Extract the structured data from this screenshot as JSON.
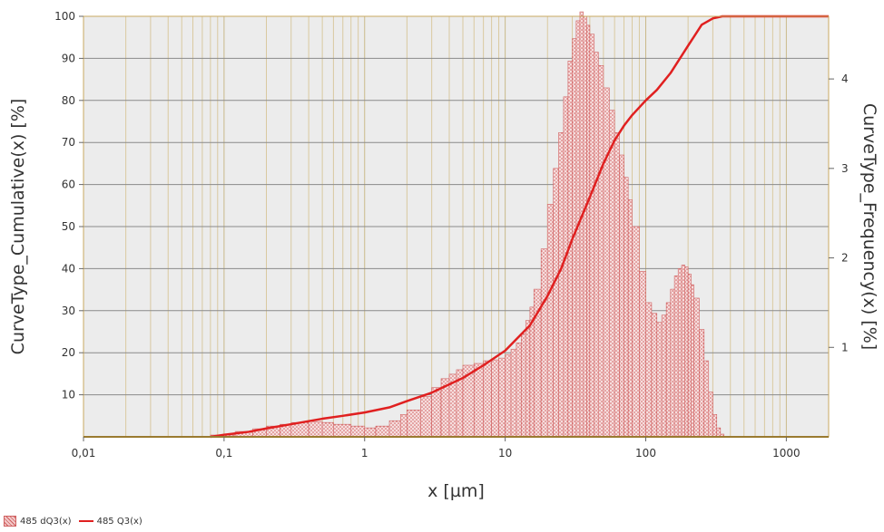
{
  "chart_data": {
    "type": "bar+line",
    "xlabel": "x [µm]",
    "ylabel_left": "CurveType_Cumulative(x) [%]",
    "ylabel_right": "CurveType_Frequency(x) [%]",
    "x_scale": "log",
    "xlim": [
      0.01,
      2000
    ],
    "ylim_left": [
      0,
      100
    ],
    "ylim_right": [
      0,
      4.7
    ],
    "x_ticks": [
      {
        "value": 0.01,
        "label": "0,01"
      },
      {
        "value": 0.1,
        "label": "0,1"
      },
      {
        "value": 1,
        "label": "1"
      },
      {
        "value": 10,
        "label": "10"
      },
      {
        "value": 100,
        "label": "100"
      },
      {
        "value": 1000,
        "label": "1000"
      }
    ],
    "y_left_ticks": [
      {
        "value": 10,
        "label": "10"
      },
      {
        "value": 20,
        "label": "20"
      },
      {
        "value": 30,
        "label": "30"
      },
      {
        "value": 40,
        "label": "40"
      },
      {
        "value": 50,
        "label": "50"
      },
      {
        "value": 60,
        "label": "60"
      },
      {
        "value": 70,
        "label": "70"
      },
      {
        "value": 80,
        "label": "80"
      },
      {
        "value": 90,
        "label": "90"
      },
      {
        "value": 100,
        "label": "100"
      }
    ],
    "y_right_ticks": [
      {
        "value": 1,
        "label": "1"
      },
      {
        "value": 2,
        "label": "2"
      },
      {
        "value": 3,
        "label": "3"
      },
      {
        "value": 4,
        "label": "4"
      }
    ],
    "grid": true,
    "legend_position": "bottom-left",
    "colors": {
      "background": "#ececec",
      "grid_major": "#8a8a8a",
      "grid_minor": "#d9c9a0",
      "frame": "#c8a860",
      "bar_fill": "#f2c9c9",
      "bar_stroke": "#d06060",
      "line": "#e02020"
    },
    "series": [
      {
        "name": "485 dQ3(x)",
        "axis": "right",
        "kind": "histogram",
        "x": [
          0.08,
          0.12,
          0.16,
          0.2,
          0.25,
          0.3,
          0.4,
          0.5,
          0.6,
          0.8,
          1.0,
          1.2,
          1.5,
          1.8,
          2.0,
          2.5,
          3.0,
          3.5,
          4.0,
          4.5,
          5.0,
          6.0,
          7.0,
          8.0,
          9.0,
          10.0,
          11.0,
          12.0,
          13.0,
          14.0,
          15.0,
          16.0,
          18.0,
          20.0,
          22.0,
          24.0,
          26.0,
          28.0,
          30.0,
          32.0,
          34.0,
          36.0,
          38.0,
          40.0,
          43.0,
          46.0,
          50.0,
          55.0,
          60.0,
          65.0,
          70.0,
          75.0,
          80.0,
          90.0,
          100.0,
          110.0,
          120.0,
          130.0,
          140.0,
          150.0,
          160.0,
          170.0,
          180.0,
          190.0,
          200.0,
          210.0,
          220.0,
          240.0,
          260.0,
          280.0,
          300.0,
          320.0,
          340.0,
          360.0
        ],
        "values": [
          0.02,
          0.06,
          0.09,
          0.12,
          0.14,
          0.16,
          0.17,
          0.16,
          0.14,
          0.12,
          0.1,
          0.12,
          0.18,
          0.25,
          0.3,
          0.45,
          0.55,
          0.65,
          0.7,
          0.75,
          0.8,
          0.82,
          0.85,
          0.86,
          0.88,
          0.92,
          0.98,
          1.05,
          1.15,
          1.3,
          1.45,
          1.65,
          2.1,
          2.6,
          3.0,
          3.4,
          3.8,
          4.2,
          4.45,
          4.65,
          4.75,
          4.7,
          4.6,
          4.5,
          4.3,
          4.15,
          3.9,
          3.65,
          3.4,
          3.15,
          2.9,
          2.65,
          2.35,
          1.85,
          1.5,
          1.38,
          1.28,
          1.36,
          1.5,
          1.65,
          1.8,
          1.88,
          1.92,
          1.9,
          1.82,
          1.7,
          1.55,
          1.2,
          0.85,
          0.5,
          0.25,
          0.1,
          0.03,
          0.0
        ]
      },
      {
        "name": "485 Q3(x)",
        "axis": "left",
        "kind": "line",
        "x": [
          0.08,
          0.1,
          0.15,
          0.2,
          0.3,
          0.5,
          0.7,
          1.0,
          1.5,
          2.0,
          3.0,
          5.0,
          7.0,
          10.0,
          15.0,
          20.0,
          25.0,
          30.0,
          40.0,
          50.0,
          60.0,
          70.0,
          80.0,
          100.0,
          120.0,
          150.0,
          200.0,
          250.0,
          300.0,
          350.0,
          400.0,
          500.0,
          1000.0,
          2000.0
        ],
        "values": [
          0,
          0.5,
          1.2,
          2.0,
          3.0,
          4.3,
          5.0,
          5.8,
          7.0,
          8.5,
          10.5,
          14.0,
          17.0,
          20.5,
          26.5,
          33.5,
          40.0,
          47.0,
          57.0,
          65.0,
          70.5,
          74.0,
          76.5,
          80.0,
          82.5,
          86.5,
          93.0,
          98.0,
          99.5,
          100,
          100,
          100,
          100,
          100
        ]
      }
    ]
  },
  "legend": {
    "bar_label": "485 dQ3(x)",
    "line_label": "485 Q3(x)"
  }
}
